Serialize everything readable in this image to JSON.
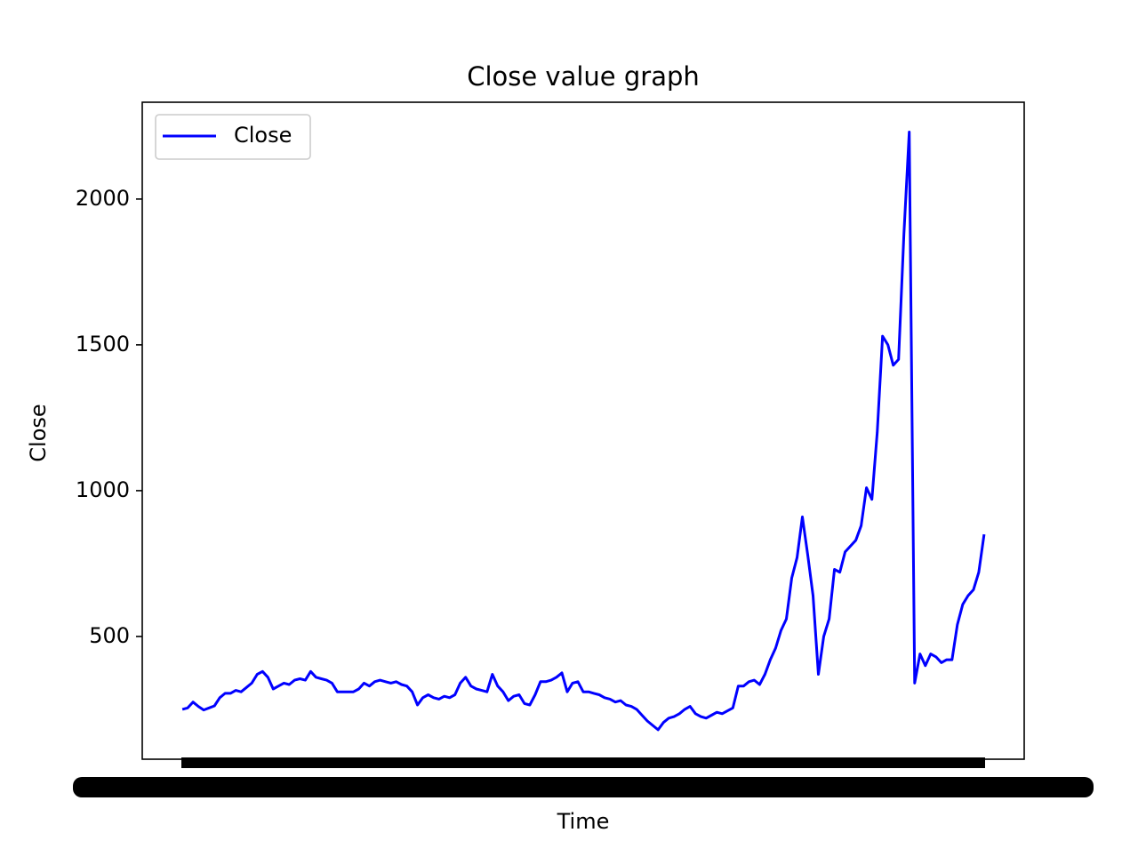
{
  "chart_data": {
    "type": "line",
    "title": "Close value graph",
    "xlabel": "Time",
    "ylabel": "Close",
    "series": [
      {
        "name": "Close",
        "color": "#0000ff",
        "values": [
          250,
          255,
          275,
          260,
          248,
          255,
          262,
          290,
          305,
          305,
          315,
          310,
          325,
          340,
          370,
          380,
          360,
          320,
          330,
          340,
          335,
          350,
          355,
          350,
          380,
          360,
          355,
          350,
          340,
          310,
          310,
          310,
          310,
          320,
          340,
          330,
          345,
          350,
          345,
          340,
          345,
          335,
          330,
          310,
          265,
          290,
          300,
          290,
          285,
          295,
          290,
          300,
          340,
          360,
          330,
          320,
          315,
          310,
          370,
          330,
          310,
          280,
          295,
          300,
          270,
          265,
          300,
          345,
          345,
          350,
          360,
          375,
          310,
          340,
          345,
          310,
          310,
          305,
          300,
          290,
          285,
          275,
          280,
          265,
          260,
          250,
          230,
          210,
          195,
          180,
          205,
          220,
          225,
          235,
          250,
          260,
          235,
          225,
          220,
          230,
          240,
          235,
          245,
          255,
          330,
          330,
          345,
          350,
          335,
          370,
          420,
          460,
          520,
          560,
          700,
          770,
          910,
          780,
          640,
          370,
          500,
          560,
          730,
          720,
          790,
          810,
          830,
          880,
          1010,
          970,
          1200,
          1530,
          1500,
          1430,
          1450,
          1880,
          2230,
          340,
          440,
          400,
          440,
          430,
          410,
          420,
          420,
          540,
          610,
          640,
          660,
          720,
          850
        ]
      }
    ],
    "ylim": [
      79,
      2332
    ],
    "yticks": [
      500,
      1000,
      1500,
      2000
    ],
    "legend": "upper left"
  }
}
